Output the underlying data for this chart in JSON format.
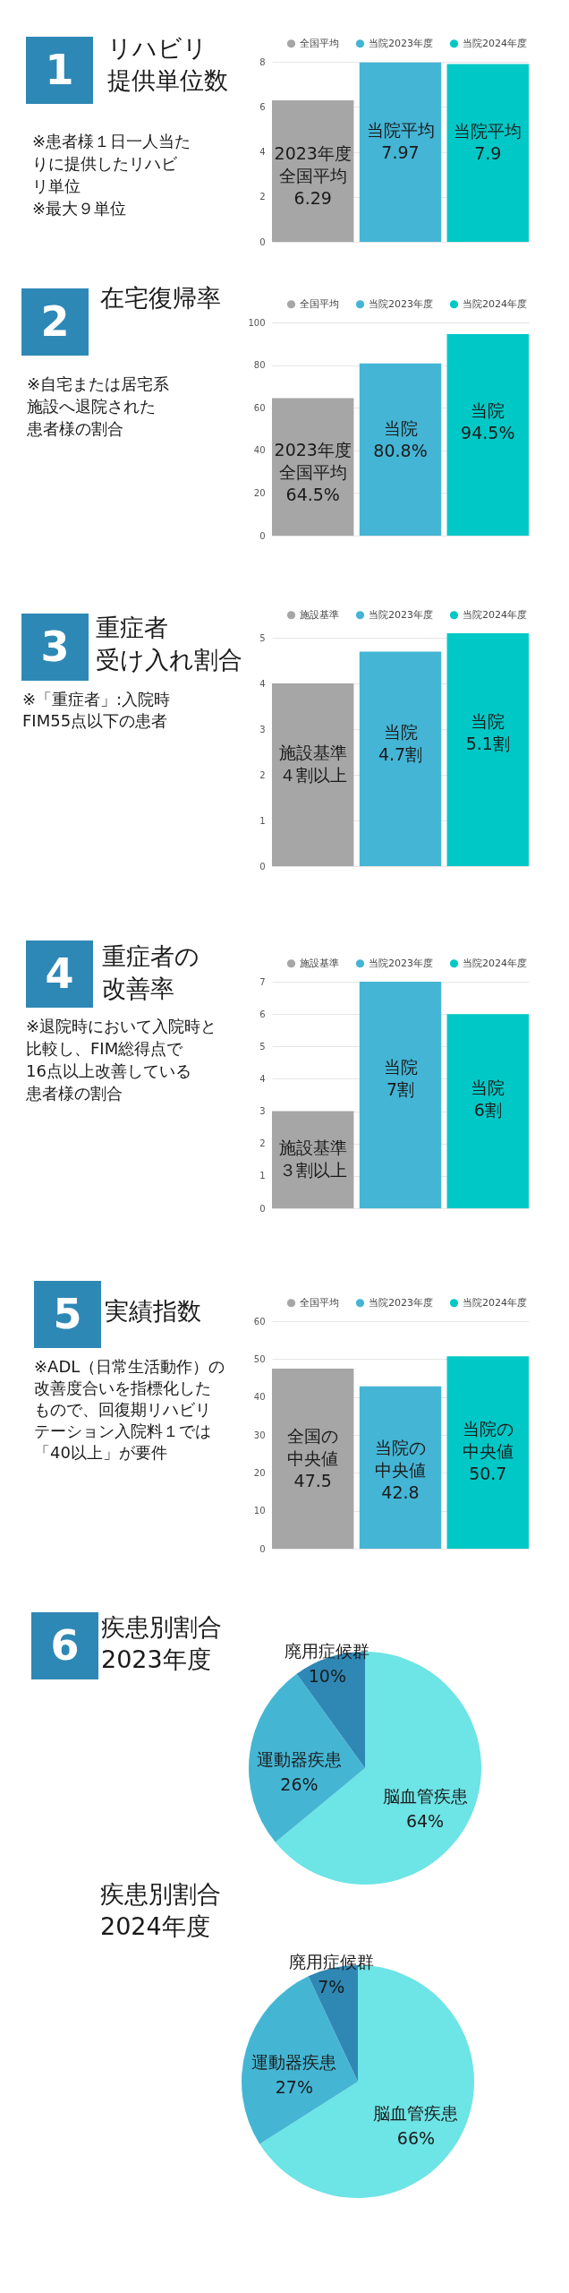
{
  "chart_data": [
    {
      "type": "bar",
      "title": "リハビリ提供単位数",
      "annotations": [
        "1",
        "※患者様１日一人当たりに提供したリハビリ単位",
        "※最大９単位"
      ],
      "categories": [
        null
      ],
      "series": [
        {
          "name": "全国平均",
          "color": "#a6a6a6",
          "values": [
            6.29
          ],
          "value_labels": [
            "2023年度全国平均6.29"
          ]
        },
        {
          "name": "当院2023年度",
          "color": "#44b5d5",
          "values": [
            7.97
          ],
          "value_labels": [
            "当院平均7.97"
          ]
        },
        {
          "name": "当院2024年度",
          "color": "#00c8c6",
          "values": [
            7.9
          ],
          "value_labels": [
            "当院平均7.9"
          ]
        }
      ],
      "ylim": [
        0,
        8
      ],
      "yticks": [
        0,
        2,
        4,
        6,
        8
      ],
      "grid": "y",
      "legend": "top",
      "tick_labels": "y"
    },
    {
      "type": "bar",
      "title": "在宅復帰率",
      "annotations": [
        "2",
        "※自宅または居宅系施設へ退院された患者様の割合"
      ],
      "categories": [
        null
      ],
      "series": [
        {
          "name": "全国平均",
          "color": "#a6a6a6",
          "values": [
            64.5
          ],
          "value_labels": [
            "2023年度全国平均64.5%"
          ]
        },
        {
          "name": "当院2023年度",
          "color": "#44b5d5",
          "values": [
            80.8
          ],
          "value_labels": [
            "当院80.8%"
          ]
        },
        {
          "name": "当院2024年度",
          "color": "#00c8c6",
          "values": [
            94.5
          ],
          "value_labels": [
            "当院94.5%"
          ]
        }
      ],
      "ylim": [
        0,
        100
      ],
      "yticks": [
        0,
        20,
        40,
        60,
        80,
        100
      ],
      "grid": "y",
      "legend": "top",
      "tick_labels": "y"
    },
    {
      "type": "bar",
      "title": "重症者受け入れ割合",
      "annotations": [
        "3",
        "※「重症者」:入院時FIM55点以下の患者"
      ],
      "categories": [
        null
      ],
      "series": [
        {
          "name": "施設基準",
          "color": "#a6a6a6",
          "values": [
            4
          ],
          "value_labels": [
            "施設基準４割以上"
          ]
        },
        {
          "name": "当院2023年度",
          "color": "#44b5d5",
          "values": [
            4.7
          ],
          "value_labels": [
            "当院4.7割"
          ]
        },
        {
          "name": "当院2024年度",
          "color": "#00c8c6",
          "values": [
            5.1
          ],
          "value_labels": [
            "当院5.1割"
          ]
        }
      ],
      "ylim": [
        0,
        5.1
      ],
      "yticks": [
        0,
        1,
        2,
        3,
        4,
        5
      ],
      "grid": "y",
      "legend": "top",
      "tick_labels": "y"
    },
    {
      "type": "bar",
      "title": "重症者の改善率",
      "annotations": [
        "4",
        "※退院時において入院時と比較し、FIM総得点で16点以上改善している患者様の割合"
      ],
      "categories": [
        null
      ],
      "series": [
        {
          "name": "施設基準",
          "color": "#a6a6a6",
          "values": [
            3
          ],
          "value_labels": [
            "施設基準３割以上"
          ]
        },
        {
          "name": "当院2023年度",
          "color": "#44b5d5",
          "values": [
            7
          ],
          "value_labels": [
            "当院7割"
          ]
        },
        {
          "name": "当院2024年度",
          "color": "#00c8c6",
          "values": [
            6
          ],
          "value_labels": [
            "当院6割"
          ]
        }
      ],
      "ylim": [
        0,
        7
      ],
      "yticks": [
        0,
        1,
        2,
        3,
        4,
        5,
        6,
        7
      ],
      "grid": "y",
      "legend": "top",
      "tick_labels": "y"
    },
    {
      "type": "bar",
      "title": "実績指数",
      "annotations": [
        "5",
        "※ADL（日常生活動作）の改善度合いを指標化したもので、回復期リハビリテーション入院料１では「40以上」が要件"
      ],
      "categories": [
        null
      ],
      "series": [
        {
          "name": "全国平均",
          "color": "#a6a6a6",
          "values": [
            47.5
          ],
          "value_labels": [
            "全国の中央値47.5"
          ]
        },
        {
          "name": "当院2023年度",
          "color": "#44b5d5",
          "values": [
            42.8
          ],
          "value_labels": [
            "当院の中央値42.8"
          ]
        },
        {
          "name": "当院2024年度",
          "color": "#00c8c6",
          "values": [
            50.7
          ],
          "value_labels": [
            "当院の中央値50.7"
          ]
        }
      ],
      "ylim": [
        0,
        60
      ],
      "yticks": [
        0,
        10,
        20,
        30,
        40,
        50,
        60
      ],
      "grid": "y",
      "legend": "top",
      "tick_labels": "y"
    },
    {
      "type": "pie",
      "title": "疾患別割合2023年度",
      "annotations": [
        "6"
      ],
      "categories": [
        "脳血管疾患",
        "運動器疾患",
        "廃用症候群"
      ],
      "values": [
        64,
        26,
        10
      ],
      "value_labels": [
        "64%",
        "26%",
        "10%"
      ],
      "colors": [
        "#6de4e6",
        "#44b6d4",
        "#2f87b4"
      ]
    },
    {
      "type": "pie",
      "title": "疾患別割合2024年度",
      "categories": [
        "脳血管疾患",
        "運動器疾患",
        "廃用症候群"
      ],
      "values": [
        66,
        27,
        7
      ],
      "value_labels": [
        "66%",
        "27%",
        "7%"
      ],
      "colors": [
        "#6de4e6",
        "#44b6d4",
        "#2f87b4"
      ]
    }
  ]
}
